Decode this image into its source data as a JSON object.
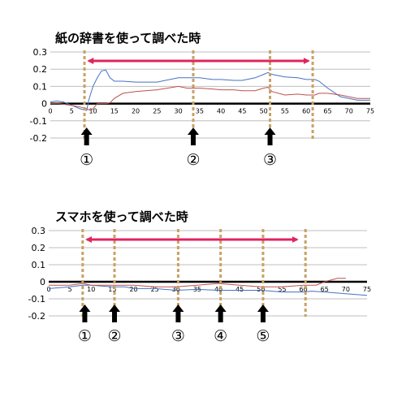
{
  "chart_data": [
    {
      "type": "line",
      "title": "紙の辞書を使って調べた時",
      "xlabel": "",
      "ylabel": "",
      "xlim": [
        0,
        75
      ],
      "ylim": [
        -0.2,
        0.3
      ],
      "x_ticks": [
        0,
        5,
        10,
        15,
        20,
        25,
        30,
        35,
        40,
        45,
        50,
        55,
        60,
        65,
        70,
        75
      ],
      "x_tick_labels": [
        "0",
        "5",
        "10",
        "15",
        "20",
        "25",
        "30",
        "35",
        "40",
        "45",
        "50",
        "55",
        "60",
        "65",
        "70",
        "75"
      ],
      "y_ticks": [
        0.3,
        0.2,
        0.1,
        0,
        -0.1,
        -0.2
      ],
      "y_tick_labels": [
        "0.3",
        "0.2",
        "0.1",
        "0",
        "-0.1",
        "-0.2"
      ],
      "grid": true,
      "series": [
        {
          "color": "#4472C4",
          "x": [
            0,
            1.5,
            3,
            5,
            7,
            8.5,
            9,
            10,
            11,
            12,
            13,
            14,
            15,
            17,
            20,
            25,
            30,
            32,
            35,
            38,
            40,
            43,
            45,
            48,
            50,
            51,
            52,
            55,
            58,
            60,
            62,
            63,
            65,
            68,
            72,
            75
          ],
          "y": [
            0.01,
            0.015,
            0.01,
            -0.01,
            -0.03,
            -0.04,
            0.02,
            0.1,
            0.15,
            0.19,
            0.195,
            0.15,
            0.13,
            0.13,
            0.125,
            0.125,
            0.15,
            0.15,
            0.15,
            0.14,
            0.14,
            0.135,
            0.135,
            0.15,
            0.17,
            0.18,
            0.17,
            0.155,
            0.15,
            0.14,
            0.14,
            0.13,
            0.09,
            0.04,
            0.02,
            0.02
          ]
        },
        {
          "color": "#C0504D",
          "x": [
            0,
            2,
            5,
            7,
            8.5,
            9.5,
            10,
            11,
            13,
            14,
            15,
            17,
            20,
            25,
            30,
            32,
            35,
            38,
            40,
            43,
            45,
            48,
            50,
            51,
            52,
            55,
            58,
            60,
            62,
            63,
            65,
            68,
            72,
            75
          ],
          "y": [
            0,
            0,
            -0.01,
            -0.02,
            -0.03,
            -0.04,
            -0.03,
            0,
            0,
            0.005,
            0.03,
            0.06,
            0.07,
            0.08,
            0.1,
            0.09,
            0.09,
            0.085,
            0.08,
            0.08,
            0.075,
            0.075,
            0.09,
            0.095,
            0.07,
            0.05,
            0.055,
            0.05,
            0.05,
            0.06,
            0.06,
            0.05,
            0.03,
            0.03
          ]
        }
      ],
      "dashed_markers_x": [
        8,
        33.5,
        51.5,
        61.5
      ],
      "range_arrow": [
        9,
        60.5
      ],
      "annotations": [
        {
          "x": 8.5,
          "label": "①"
        },
        {
          "x": 33.5,
          "label": "②"
        },
        {
          "x": 51.5,
          "label": "③"
        }
      ]
    },
    {
      "type": "line",
      "title": "スマホを使って調べた時",
      "xlabel": "",
      "ylabel": "",
      "xlim": [
        0,
        75
      ],
      "ylim": [
        -0.2,
        0.3
      ],
      "x_ticks": [
        0,
        5,
        10,
        15,
        20,
        25,
        30,
        35,
        40,
        45,
        50,
        55,
        60,
        65,
        70,
        75
      ],
      "x_tick_labels": [
        "0",
        "5",
        "10",
        "15",
        "20",
        "25",
        "30",
        "35",
        "40",
        "45",
        "50",
        "55",
        "60",
        "65",
        "70",
        "75"
      ],
      "y_ticks": [
        0.3,
        0.2,
        0.1,
        0,
        -0.1,
        -0.2
      ],
      "y_tick_labels": [
        "0.3",
        "0.2",
        "0.1",
        "0",
        "-0.1",
        "-0.2"
      ],
      "grid": true,
      "series": [
        {
          "color": "#4472C4",
          "x": [
            0,
            5,
            8,
            10,
            15,
            18,
            20,
            25,
            30,
            35,
            40,
            45,
            50,
            55,
            60,
            62,
            65,
            70,
            75
          ],
          "y": [
            -0.04,
            -0.03,
            -0.02,
            -0.02,
            -0.03,
            -0.03,
            -0.04,
            -0.04,
            -0.05,
            -0.045,
            -0.05,
            -0.05,
            -0.05,
            -0.06,
            -0.06,
            -0.055,
            -0.06,
            -0.07,
            -0.08
          ]
        },
        {
          "color": "#C0504D",
          "x": [
            0,
            5,
            8,
            10,
            15,
            20,
            25,
            30,
            35,
            40,
            45,
            50,
            55,
            60,
            63,
            65,
            68,
            70
          ],
          "y": [
            -0.02,
            -0.02,
            -0.01,
            -0.02,
            -0.02,
            -0.02,
            -0.03,
            -0.03,
            -0.02,
            -0.01,
            -0.02,
            -0.03,
            -0.03,
            -0.02,
            -0.02,
            0,
            0.02,
            0.02
          ]
        }
      ],
      "dashed_markers_x": [
        8,
        15.5,
        30.5,
        40.5,
        50.5,
        60.5
      ],
      "range_arrow": [
        9,
        58.5
      ],
      "annotations": [
        {
          "x": 8.5,
          "label": "①"
        },
        {
          "x": 15.5,
          "label": "②"
        },
        {
          "x": 30.5,
          "label": "③"
        },
        {
          "x": 40.5,
          "label": "④"
        },
        {
          "x": 50.5,
          "label": "⑤"
        }
      ]
    }
  ]
}
